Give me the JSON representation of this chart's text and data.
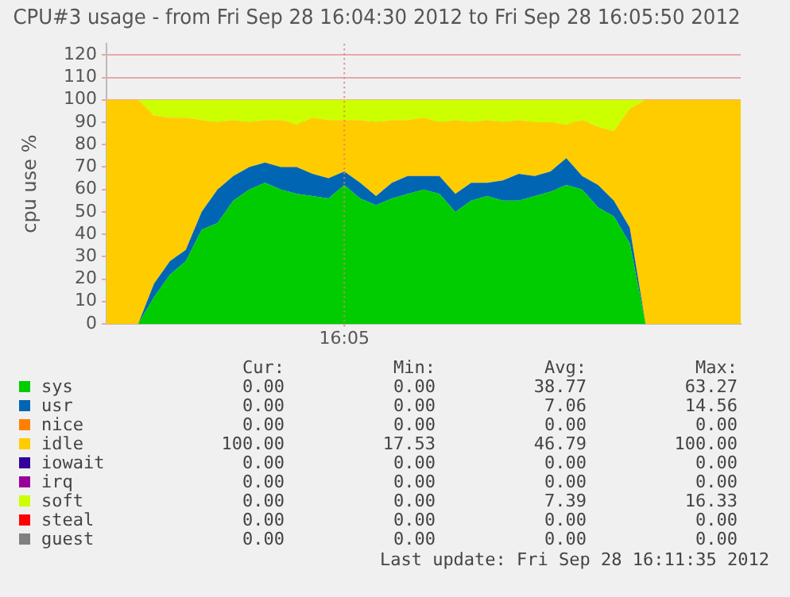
{
  "chart_data": {
    "type": "area",
    "title": "CPU#3 usage - from Fri Sep 28 16:04:30 2012 to Fri Sep 28 16:05:50 2012",
    "ylabel": "cpu use %",
    "stacked": true,
    "grid": true,
    "legend": "bottom",
    "marker": "none",
    "categories": [
      null,
      null,
      null,
      null,
      null,
      null,
      null,
      null,
      null,
      null,
      null,
      null,
      null,
      null,
      null,
      null,
      null,
      null,
      null,
      null,
      null,
      null,
      null,
      null,
      null,
      null,
      null,
      null,
      null,
      null,
      null,
      null,
      null,
      null,
      null,
      null,
      null,
      null,
      null,
      null,
      null
    ],
    "ylim": [
      0,
      125
    ],
    "yticks": [
      0,
      10,
      20,
      30,
      40,
      50,
      60,
      70,
      80,
      90,
      100,
      110,
      120
    ],
    "series": [
      {
        "name": "sys",
        "color": "#00cc00",
        "values": [
          0,
          0,
          0,
          12,
          22,
          28,
          42,
          45,
          55,
          60,
          63,
          60,
          58,
          57,
          56,
          62,
          56,
          53,
          56,
          58,
          60,
          58,
          50,
          55,
          57,
          55,
          55,
          57,
          59,
          62,
          60,
          52,
          48,
          36,
          0,
          0,
          0,
          0,
          0,
          0,
          0
        ]
      },
      {
        "name": "usr",
        "color": "#0066b3",
        "values": [
          0,
          0,
          0,
          6,
          6,
          5,
          8,
          15,
          11,
          10,
          9,
          10,
          12,
          10,
          9,
          6,
          7,
          4,
          7,
          8,
          6,
          8,
          8,
          8,
          6,
          9,
          12,
          9,
          9,
          12,
          6,
          10,
          7,
          7,
          0,
          0,
          0,
          0,
          0,
          0,
          0
        ]
      },
      {
        "name": "nice",
        "color": "#ff8000",
        "values": [
          null,
          null,
          null,
          null,
          null,
          null,
          null,
          null,
          null,
          null,
          null,
          null,
          null,
          null,
          null,
          null,
          null,
          null,
          null,
          null,
          null,
          null,
          null,
          null,
          null,
          null,
          null,
          null,
          null,
          null,
          null,
          null,
          null,
          null,
          null,
          null,
          null,
          null,
          null,
          null,
          null
        ]
      },
      {
        "name": "idle",
        "color": "#ffcc00",
        "values": [
          100,
          100,
          100,
          75,
          64,
          59,
          41,
          30,
          25,
          20,
          19,
          21,
          19,
          25,
          26,
          23,
          28,
          33,
          28,
          25,
          26,
          24,
          33,
          27,
          28,
          26,
          24,
          24,
          22,
          15,
          25,
          26,
          31,
          53,
          100,
          100,
          100,
          100,
          100,
          100,
          100
        ]
      },
      {
        "name": "iowait",
        "color": "#330099",
        "values": [
          null,
          null,
          null,
          null,
          null,
          null,
          null,
          null,
          null,
          null,
          null,
          null,
          null,
          null,
          null,
          null,
          null,
          null,
          null,
          null,
          null,
          null,
          null,
          null,
          null,
          null,
          null,
          null,
          null,
          null,
          null,
          null,
          null,
          null,
          null,
          null,
          null,
          null,
          null,
          null,
          null
        ]
      },
      {
        "name": "irq",
        "color": "#990099",
        "values": [
          null,
          null,
          null,
          null,
          null,
          null,
          null,
          null,
          null,
          null,
          null,
          null,
          null,
          null,
          null,
          null,
          null,
          null,
          null,
          null,
          null,
          null,
          null,
          null,
          null,
          null,
          null,
          null,
          null,
          null,
          null,
          null,
          null,
          null,
          null,
          null,
          null,
          null,
          null,
          null,
          null
        ]
      },
      {
        "name": "soft",
        "color": "#ccff00",
        "values": [
          0,
          0,
          0,
          7,
          8,
          8,
          9,
          10,
          9,
          10,
          9,
          9,
          11,
          8,
          9,
          9,
          9,
          10,
          9,
          9,
          8,
          10,
          9,
          10,
          9,
          10,
          9,
          10,
          10,
          11,
          9,
          12,
          14,
          4,
          0,
          0,
          0,
          0,
          0,
          0,
          0
        ]
      },
      {
        "name": "steal",
        "color": "#ff0000",
        "values": [
          null,
          null,
          null,
          null,
          null,
          null,
          null,
          null,
          null,
          null,
          null,
          null,
          null,
          null,
          null,
          null,
          null,
          null,
          null,
          null,
          null,
          null,
          null,
          null,
          null,
          null,
          null,
          null,
          null,
          null,
          null,
          null,
          null,
          null,
          null,
          null,
          null,
          null,
          null,
          null,
          null
        ]
      },
      {
        "name": "guest",
        "color": "#808080",
        "values": [
          null,
          null,
          null,
          null,
          null,
          null,
          null,
          null,
          null,
          null,
          null,
          null,
          null,
          null,
          null,
          null,
          null,
          null,
          null,
          null,
          null,
          null,
          null,
          null,
          null,
          null,
          null,
          null,
          null,
          null,
          null,
          null,
          null,
          null,
          null,
          null,
          null,
          null,
          null,
          null,
          null
        ]
      }
    ],
    "annotations": [
      "16:05",
      "Cur:",
      "Min:",
      "Avg:",
      "Max:",
      "0.00",
      "0.00",
      "38.77",
      "63.27",
      "0.00",
      "0.00",
      "7.06",
      "14.56",
      "0.00",
      "0.00",
      "0.00",
      "0.00",
      "100.00",
      "17.53",
      "46.79",
      "100.00",
      "0.00",
      "0.00",
      "0.00",
      "0.00",
      "0.00",
      "0.00",
      "0.00",
      "0.00",
      "0.00",
      "0.00",
      "7.39",
      "16.33",
      "0.00",
      "0.00",
      "0.00",
      "0.00",
      "0.00",
      "0.00",
      "0.00",
      "0.00",
      "Last update: Fri Sep 28 16:11:35 2012"
    ]
  }
}
